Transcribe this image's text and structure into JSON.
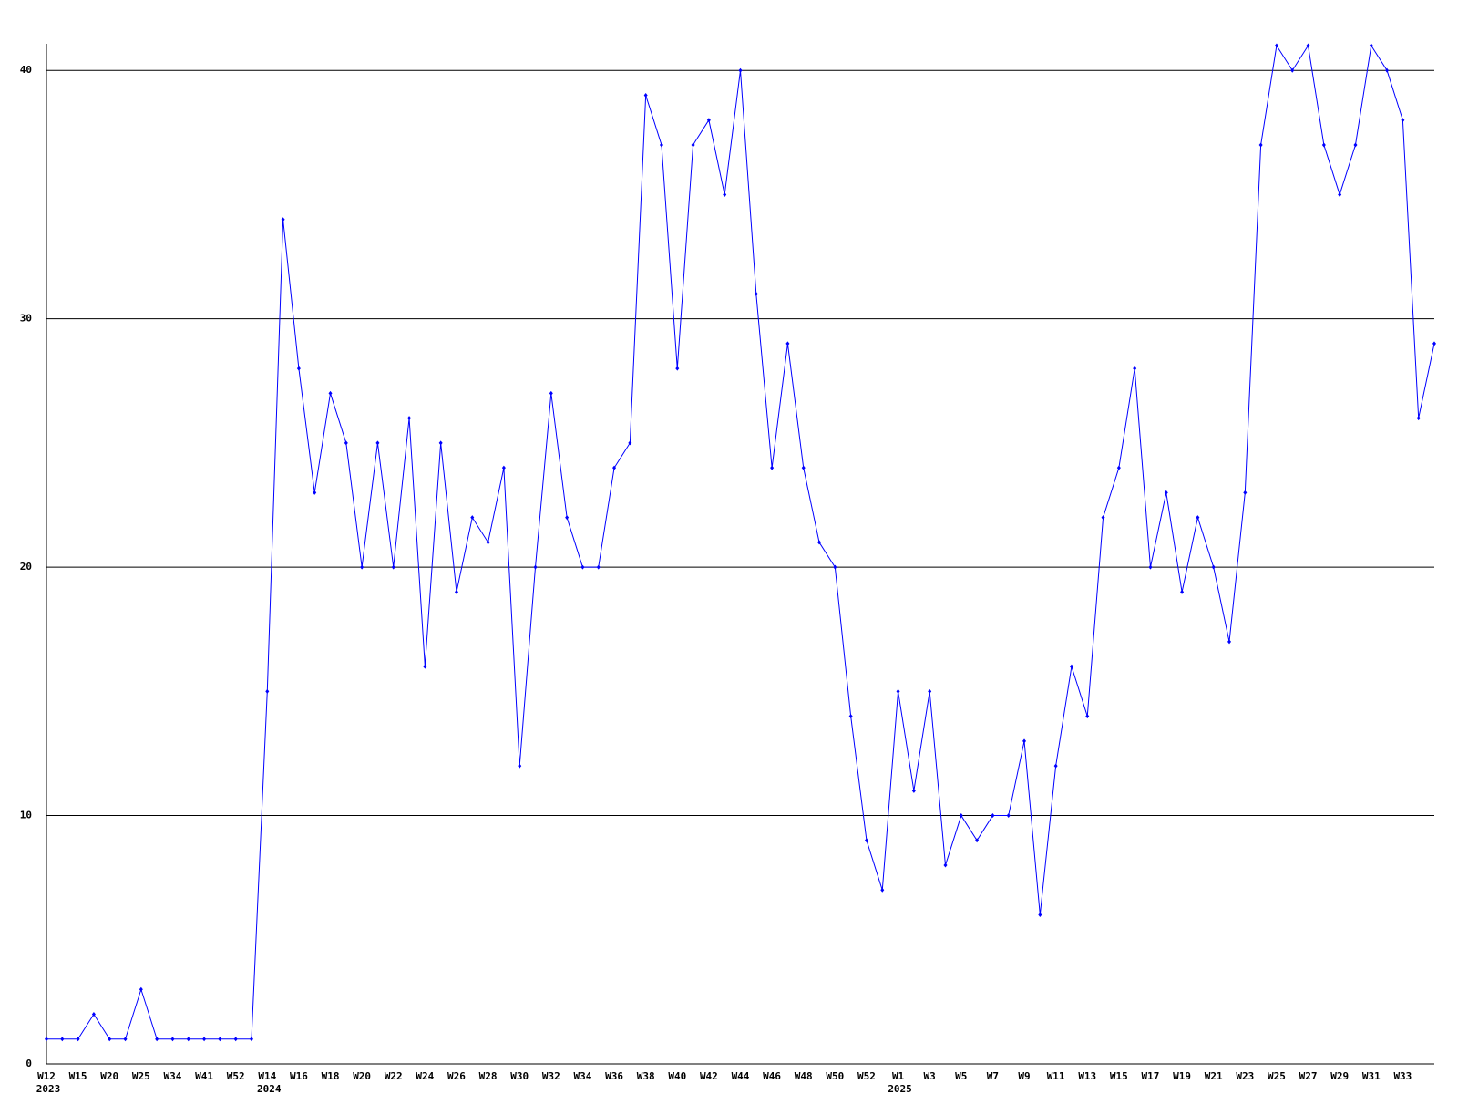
{
  "chart_data": {
    "type": "line",
    "categories": [
      "W12",
      null,
      "W15",
      null,
      "W20",
      null,
      "W25",
      null,
      "W34",
      null,
      "W41",
      null,
      "W52",
      null,
      "W14",
      null,
      "W16",
      null,
      "W18",
      null,
      "W20",
      null,
      "W22",
      null,
      "W24",
      null,
      "W26",
      null,
      "W28",
      null,
      "W30",
      null,
      "W32",
      null,
      "W34",
      null,
      "W36",
      null,
      "W38",
      null,
      "W40",
      null,
      "W42",
      null,
      "W44",
      null,
      "W46",
      null,
      "W48",
      null,
      "W50",
      null,
      "W52",
      null,
      "W1",
      null,
      "W3",
      null,
      "W5",
      null,
      "W7",
      null,
      "W9",
      null,
      "W11",
      null,
      "W13",
      null,
      "W15",
      null,
      "W17",
      null,
      "W19",
      null,
      "W21",
      null,
      "W23",
      null,
      "W25",
      null,
      "W27",
      null,
      "W29",
      null,
      "W31",
      null,
      "W33",
      null,
      null
    ],
    "years": [
      "2023",
      null,
      null,
      null,
      null,
      null,
      null,
      null,
      null,
      null,
      null,
      null,
      null,
      null,
      "2024",
      null,
      null,
      null,
      null,
      null,
      null,
      null,
      null,
      null,
      null,
      null,
      null,
      null,
      null,
      null,
      null,
      null,
      null,
      null,
      null,
      null,
      null,
      null,
      null,
      null,
      null,
      null,
      null,
      null,
      null,
      null,
      null,
      null,
      null,
      null,
      null,
      null,
      null,
      null,
      "2025",
      null,
      null,
      null,
      null,
      null,
      null,
      null,
      null,
      null,
      null,
      null,
      null,
      null,
      null,
      null,
      null,
      null,
      null,
      null,
      null,
      null,
      null,
      null,
      null,
      null,
      null,
      null,
      null,
      null,
      null,
      null,
      null,
      null,
      null
    ],
    "series": [
      {
        "color": "#0000ff",
        "values": [
          1,
          1,
          1,
          2,
          1,
          1,
          3,
          1,
          1,
          1,
          1,
          1,
          1,
          1,
          15,
          34,
          28,
          23,
          27,
          25,
          20,
          25,
          20,
          26,
          16,
          25,
          19,
          22,
          21,
          24,
          12,
          20,
          27,
          22,
          20,
          20,
          24,
          25,
          39,
          37,
          28,
          37,
          38,
          35,
          40,
          31,
          24,
          29,
          24,
          21,
          20,
          14,
          9,
          7,
          15,
          11,
          15,
          8,
          10,
          9,
          10,
          10,
          13,
          6,
          12,
          16,
          14,
          22,
          24,
          28,
          20,
          23,
          19,
          22,
          20,
          17,
          23,
          37,
          41,
          40,
          41,
          37,
          35,
          37,
          41,
          40,
          38,
          26,
          29
        ]
      }
    ],
    "ylim": [
      0,
      41
    ],
    "yticks": [
      0,
      10,
      20,
      30,
      40
    ],
    "grid": true
  }
}
